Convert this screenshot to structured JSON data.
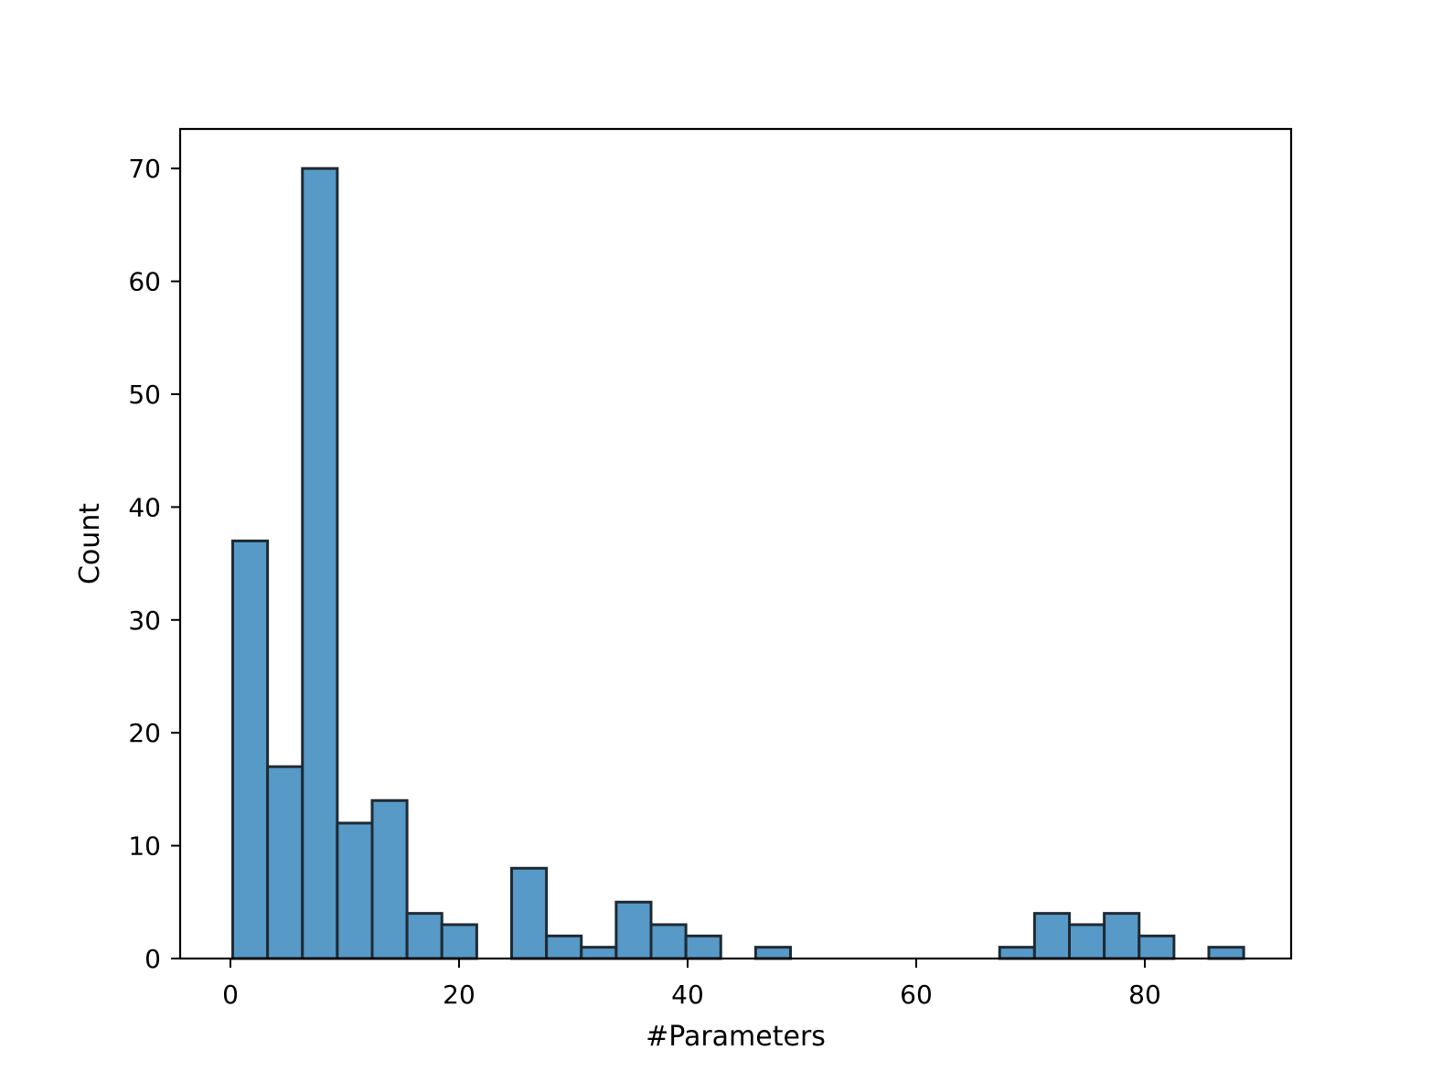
{
  "chart_data": {
    "type": "bar",
    "subtype": "histogram",
    "title": "",
    "xlabel": "#Parameters",
    "ylabel": "Count",
    "xlim": [
      -4.4,
      92.8
    ],
    "ylim": [
      0,
      73.5
    ],
    "xticks": [
      0,
      20,
      40,
      60,
      80
    ],
    "yticks": [
      0,
      10,
      20,
      30,
      40,
      50,
      60,
      70
    ],
    "grid": false,
    "legend": "none",
    "bar_color": "#5799c7",
    "edge_color": "#1f2a33",
    "bins": [
      {
        "start": 0.2,
        "end": 3.25,
        "count": 37
      },
      {
        "start": 3.25,
        "end": 6.3,
        "count": 17
      },
      {
        "start": 6.3,
        "end": 9.35,
        "count": 70
      },
      {
        "start": 9.35,
        "end": 12.4,
        "count": 12
      },
      {
        "start": 12.4,
        "end": 15.45,
        "count": 14
      },
      {
        "start": 15.45,
        "end": 18.5,
        "count": 4
      },
      {
        "start": 18.5,
        "end": 21.55,
        "count": 3
      },
      {
        "start": 21.55,
        "end": 24.6,
        "count": 0
      },
      {
        "start": 24.6,
        "end": 27.65,
        "count": 8
      },
      {
        "start": 27.65,
        "end": 30.7,
        "count": 2
      },
      {
        "start": 30.7,
        "end": 33.75,
        "count": 1
      },
      {
        "start": 33.75,
        "end": 36.8,
        "count": 5
      },
      {
        "start": 36.8,
        "end": 39.85,
        "count": 3
      },
      {
        "start": 39.85,
        "end": 42.9,
        "count": 2
      },
      {
        "start": 42.9,
        "end": 45.95,
        "count": 0
      },
      {
        "start": 45.95,
        "end": 49.0,
        "count": 1
      },
      {
        "start": 49.0,
        "end": 52.05,
        "count": 0
      },
      {
        "start": 52.05,
        "end": 55.1,
        "count": 0
      },
      {
        "start": 55.1,
        "end": 58.15,
        "count": 0
      },
      {
        "start": 58.15,
        "end": 61.2,
        "count": 0
      },
      {
        "start": 61.2,
        "end": 64.25,
        "count": 0
      },
      {
        "start": 64.25,
        "end": 67.3,
        "count": 0
      },
      {
        "start": 67.3,
        "end": 70.35,
        "count": 1
      },
      {
        "start": 70.35,
        "end": 73.4,
        "count": 4
      },
      {
        "start": 73.4,
        "end": 76.45,
        "count": 3
      },
      {
        "start": 76.45,
        "end": 79.5,
        "count": 4
      },
      {
        "start": 79.5,
        "end": 82.55,
        "count": 2
      },
      {
        "start": 82.55,
        "end": 85.6,
        "count": 0
      },
      {
        "start": 85.6,
        "end": 88.65,
        "count": 1
      }
    ]
  }
}
